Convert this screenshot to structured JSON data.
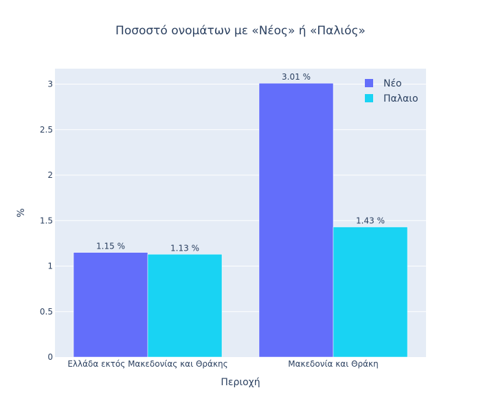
{
  "chart_data": {
    "type": "bar",
    "title": "Ποσοστό ονομάτων με «Νέος» ή «Παλιός»",
    "xlabel": "Περιοχή",
    "ylabel": "%",
    "categories": [
      "Ελλάδα εκτός Μακεδονίας και Θράκης",
      "Μακεδονία και Θράκη"
    ],
    "series": [
      {
        "name": "Νέο",
        "values": [
          1.15,
          3.01
        ],
        "labels": [
          "1.15 %",
          "3.01 %"
        ],
        "color": "#636efa"
      },
      {
        "name": "Παλαιο",
        "values": [
          1.13,
          1.43
        ],
        "labels": [
          "1.13 %",
          "1.43 %"
        ],
        "color": "#19d3f3"
      }
    ],
    "ylim": [
      0,
      3.17
    ],
    "yticks": [
      0,
      0.5,
      1,
      1.5,
      2,
      2.5,
      3
    ],
    "ytick_labels": [
      "0",
      "0.5",
      "1",
      "1.5",
      "2",
      "2.5",
      "3"
    ],
    "grid": true,
    "legend_position": "top-right",
    "plot_background": "#e5ecf6"
  }
}
